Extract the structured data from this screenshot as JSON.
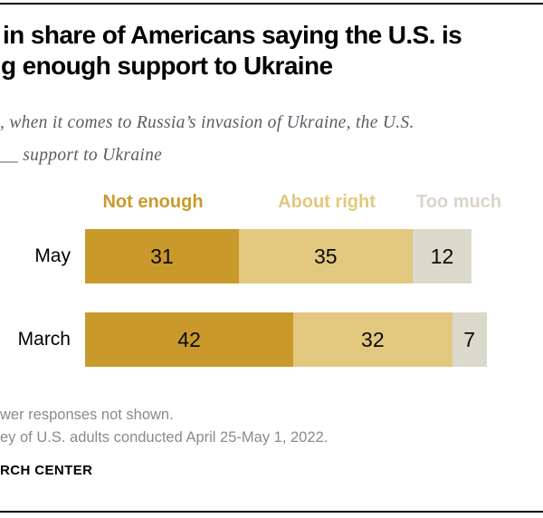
{
  "header": {
    "title_line1": "in share of Americans saying the U.S. is",
    "title_line2": "g enough support to Ukraine",
    "subtitle_line1": ", when it comes to Russia’s invasion of Ukraine, the U.S.",
    "subtitle_line2": "__ support to Ukraine"
  },
  "legend": {
    "items": [
      {
        "label": "Not enough",
        "color": "#C9992B"
      },
      {
        "label": "About right",
        "color": "#E2C87E"
      },
      {
        "label": "Too much",
        "color": "#D9D5C6"
      }
    ]
  },
  "chart_data": {
    "type": "bar",
    "orientation": "horizontal",
    "stacked": true,
    "unit": "percent",
    "categories": [
      "May",
      "March"
    ],
    "series": [
      {
        "name": "Not enough",
        "color": "#C9992B",
        "values": [
          31,
          42
        ]
      },
      {
        "name": "About right",
        "color": "#E2C87E",
        "values": [
          35,
          32
        ]
      },
      {
        "name": "Too much",
        "color": "#DBD8CC",
        "values": [
          12,
          7
        ]
      }
    ],
    "totals": [
      78,
      81
    ],
    "value_labels": true,
    "axes_hidden": true,
    "legend_position": "top"
  },
  "footer": {
    "note_line1": "wer responses not shown.",
    "note_line2": "ey of U.S. adults conducted April 25-May 1, 2022.",
    "attribution": "RCH CENTER"
  }
}
